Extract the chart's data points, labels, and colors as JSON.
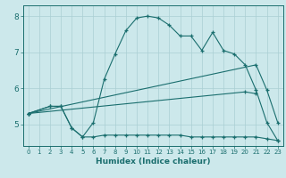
{
  "xlabel": "Humidex (Indice chaleur)",
  "xlim": [
    -0.5,
    23.5
  ],
  "ylim": [
    4.4,
    8.3
  ],
  "yticks": [
    5,
    6,
    7,
    8
  ],
  "xticks": [
    0,
    1,
    2,
    3,
    4,
    5,
    6,
    7,
    8,
    9,
    10,
    11,
    12,
    13,
    14,
    15,
    16,
    17,
    18,
    19,
    20,
    21,
    22,
    23
  ],
  "bg_color": "#cce8eb",
  "line_color": "#1a6e6e",
  "grid_color": "#aacfd4",
  "line1_x": [
    0,
    2,
    3,
    4,
    5,
    6,
    7,
    8,
    9,
    10,
    11,
    12,
    13,
    14,
    15,
    16,
    17,
    18,
    19,
    20,
    21,
    22,
    23
  ],
  "line1_y": [
    5.3,
    5.5,
    5.5,
    4.9,
    4.65,
    5.05,
    6.25,
    6.95,
    7.6,
    7.95,
    8.0,
    7.95,
    7.75,
    7.45,
    7.45,
    7.05,
    7.55,
    7.05,
    6.95,
    6.65,
    5.95,
    5.05,
    4.55
  ],
  "line2_x": [
    0,
    2,
    3,
    4,
    5,
    6,
    7,
    8,
    9,
    10,
    11,
    12,
    13,
    14,
    15,
    16,
    17,
    18,
    19,
    20,
    21,
    22,
    23
  ],
  "line2_y": [
    5.3,
    5.5,
    5.5,
    4.9,
    4.65,
    4.65,
    4.7,
    4.7,
    4.7,
    4.7,
    4.7,
    4.7,
    4.7,
    4.7,
    4.65,
    4.65,
    4.65,
    4.65,
    4.65,
    4.65,
    4.65,
    4.6,
    4.55
  ],
  "line3_x": [
    0,
    21,
    22,
    23
  ],
  "line3_y": [
    5.3,
    6.65,
    5.95,
    5.05
  ],
  "line4_x": [
    0,
    20,
    21
  ],
  "line4_y": [
    5.3,
    5.9,
    5.85
  ]
}
